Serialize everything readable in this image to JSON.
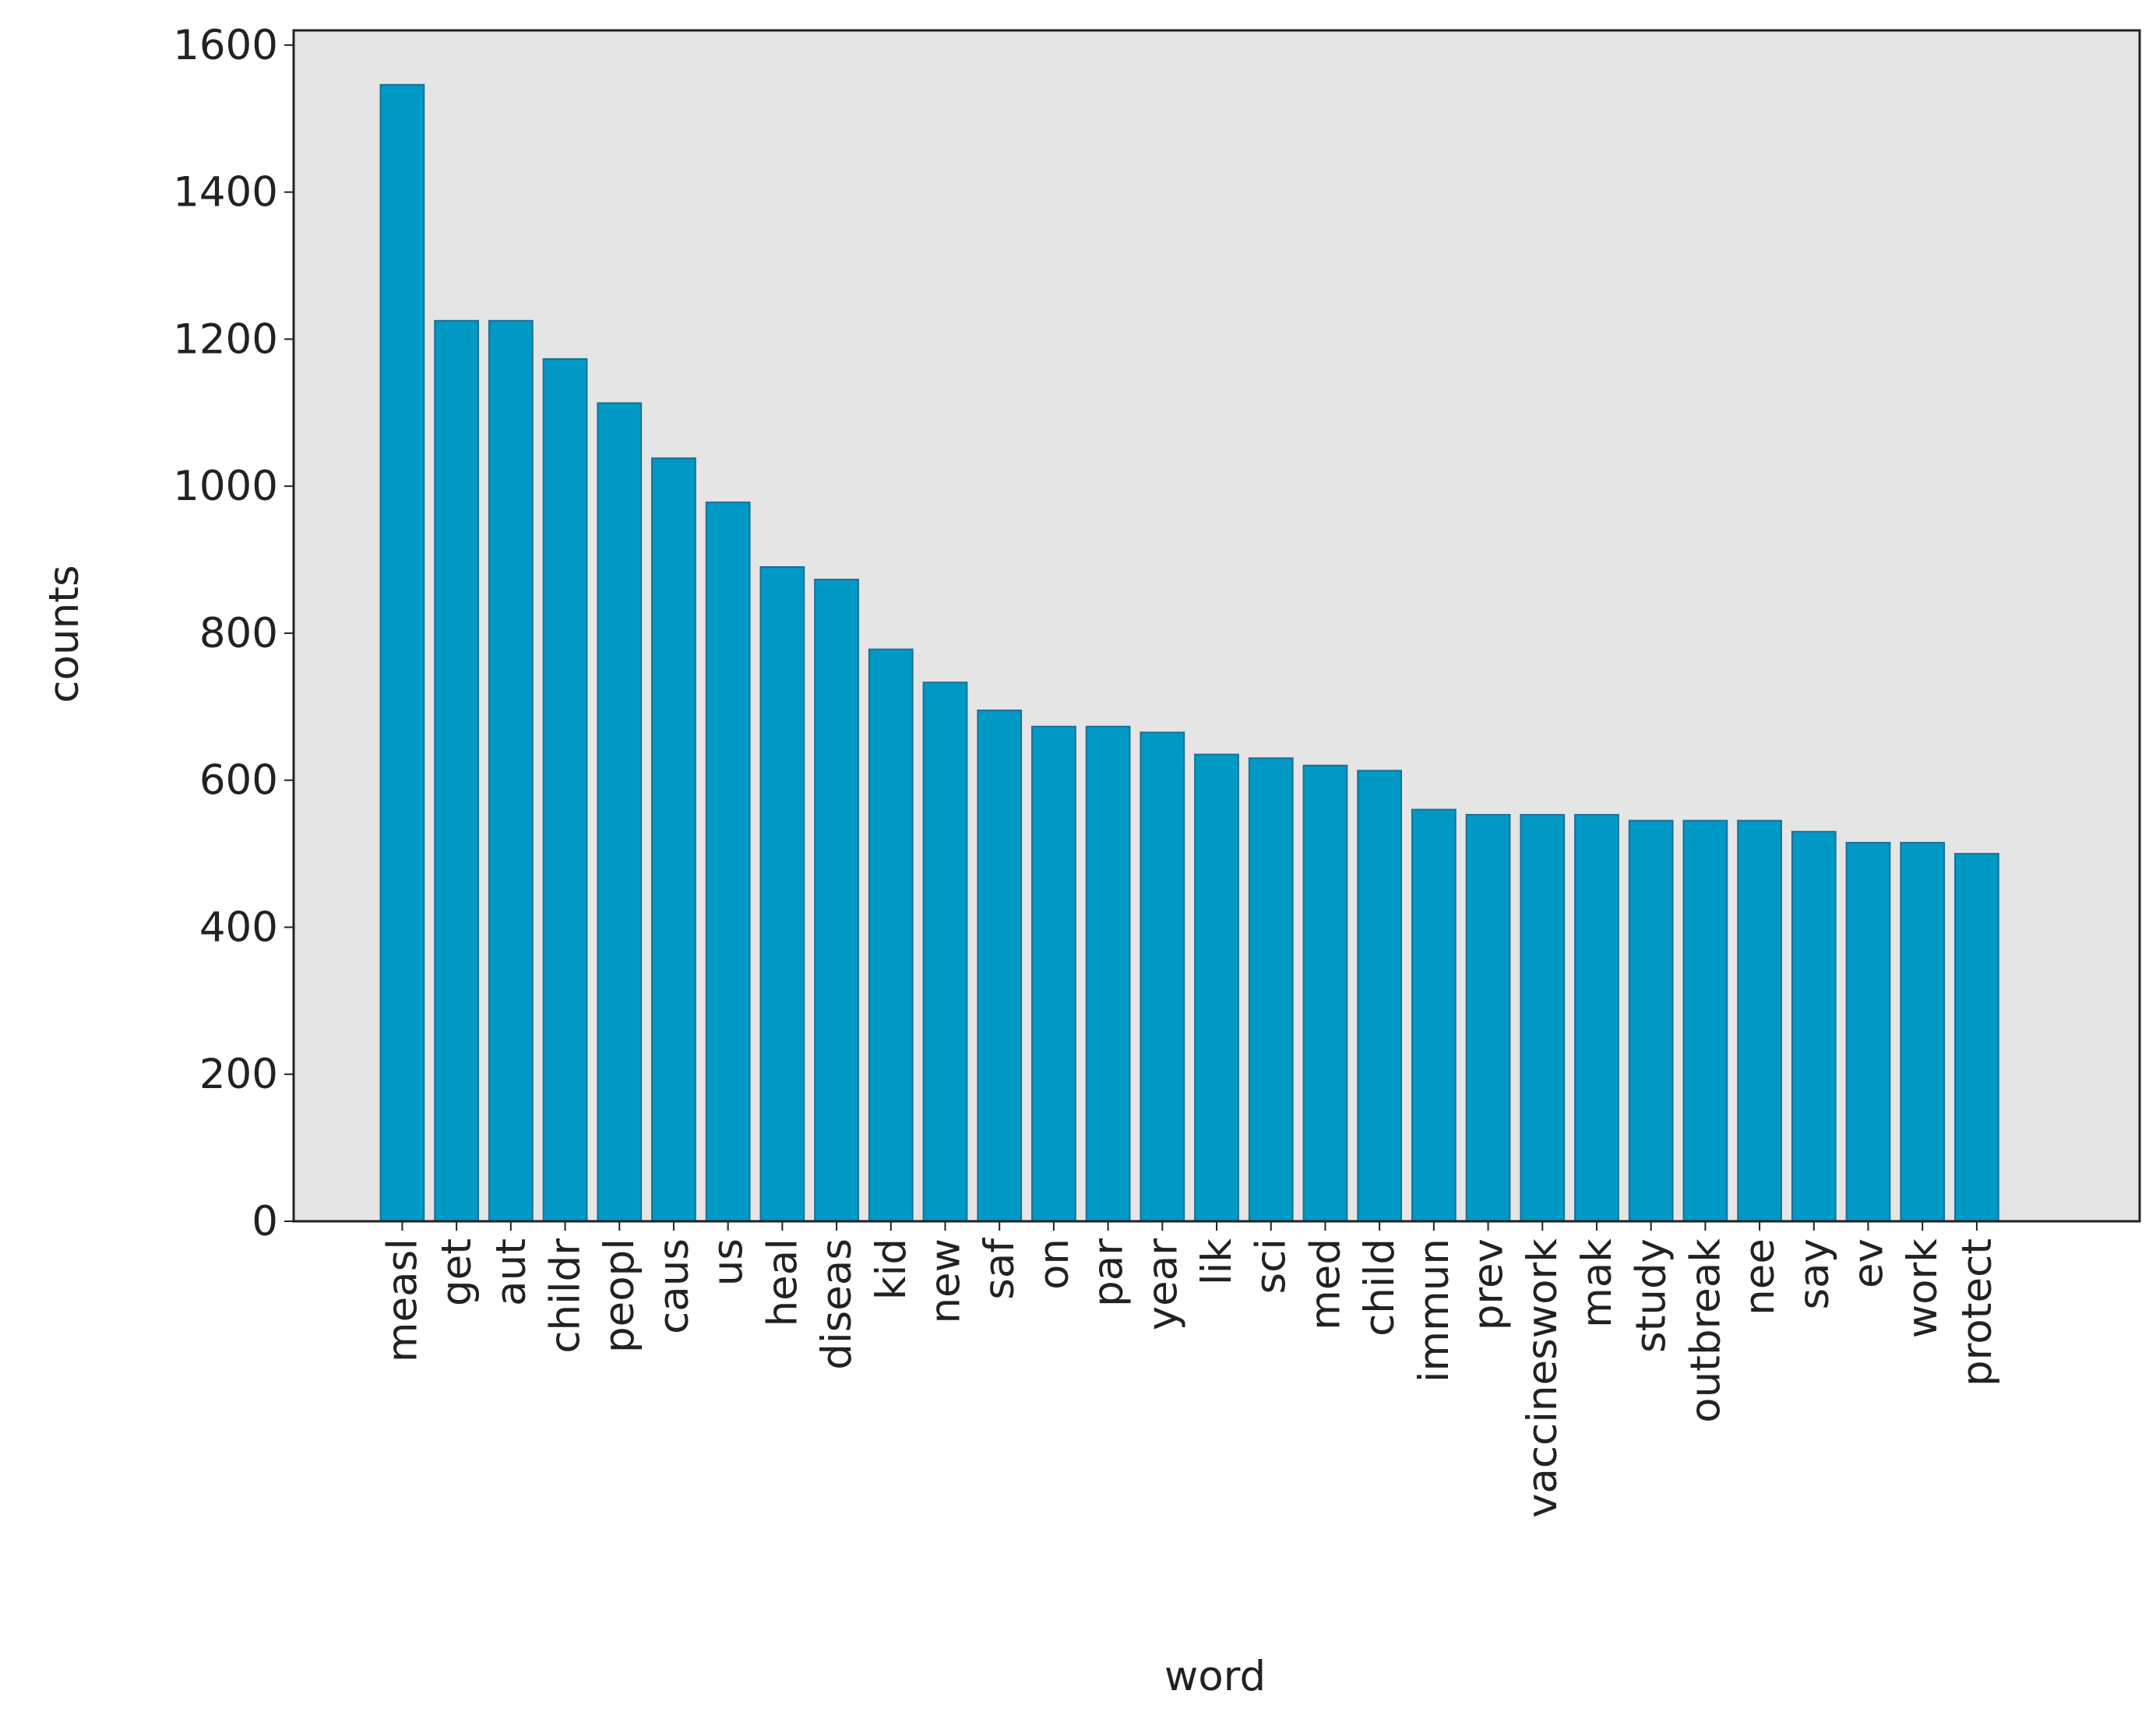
{
  "chart_data": {
    "type": "bar",
    "x_label": "word",
    "y_label": "counts",
    "categories": [
      "measl",
      "get",
      "aut",
      "childr",
      "peopl",
      "caus",
      "us",
      "heal",
      "diseas",
      "kid",
      "new",
      "saf",
      "on",
      "par",
      "year",
      "lik",
      "sci",
      "med",
      "child",
      "immun",
      "prev",
      "vaccineswork",
      "mak",
      "study",
      "outbreak",
      "nee",
      "say",
      "ev",
      "work",
      "protect"
    ],
    "values": [
      1546,
      1225,
      1225,
      1173,
      1113,
      1038,
      978,
      890,
      873,
      778,
      733,
      695,
      673,
      673,
      665,
      635,
      630,
      620,
      613,
      560,
      553,
      553,
      553,
      545,
      545,
      545,
      530,
      515,
      515,
      500
    ],
    "color": "#0099c6",
    "edgecolor": "#1b6f98",
    "background": "#e5e5e5",
    "ylim": [
      0,
      1620
    ],
    "yticks": [
      0,
      200,
      400,
      600,
      800,
      1000,
      1200,
      1400,
      1600
    ]
  }
}
